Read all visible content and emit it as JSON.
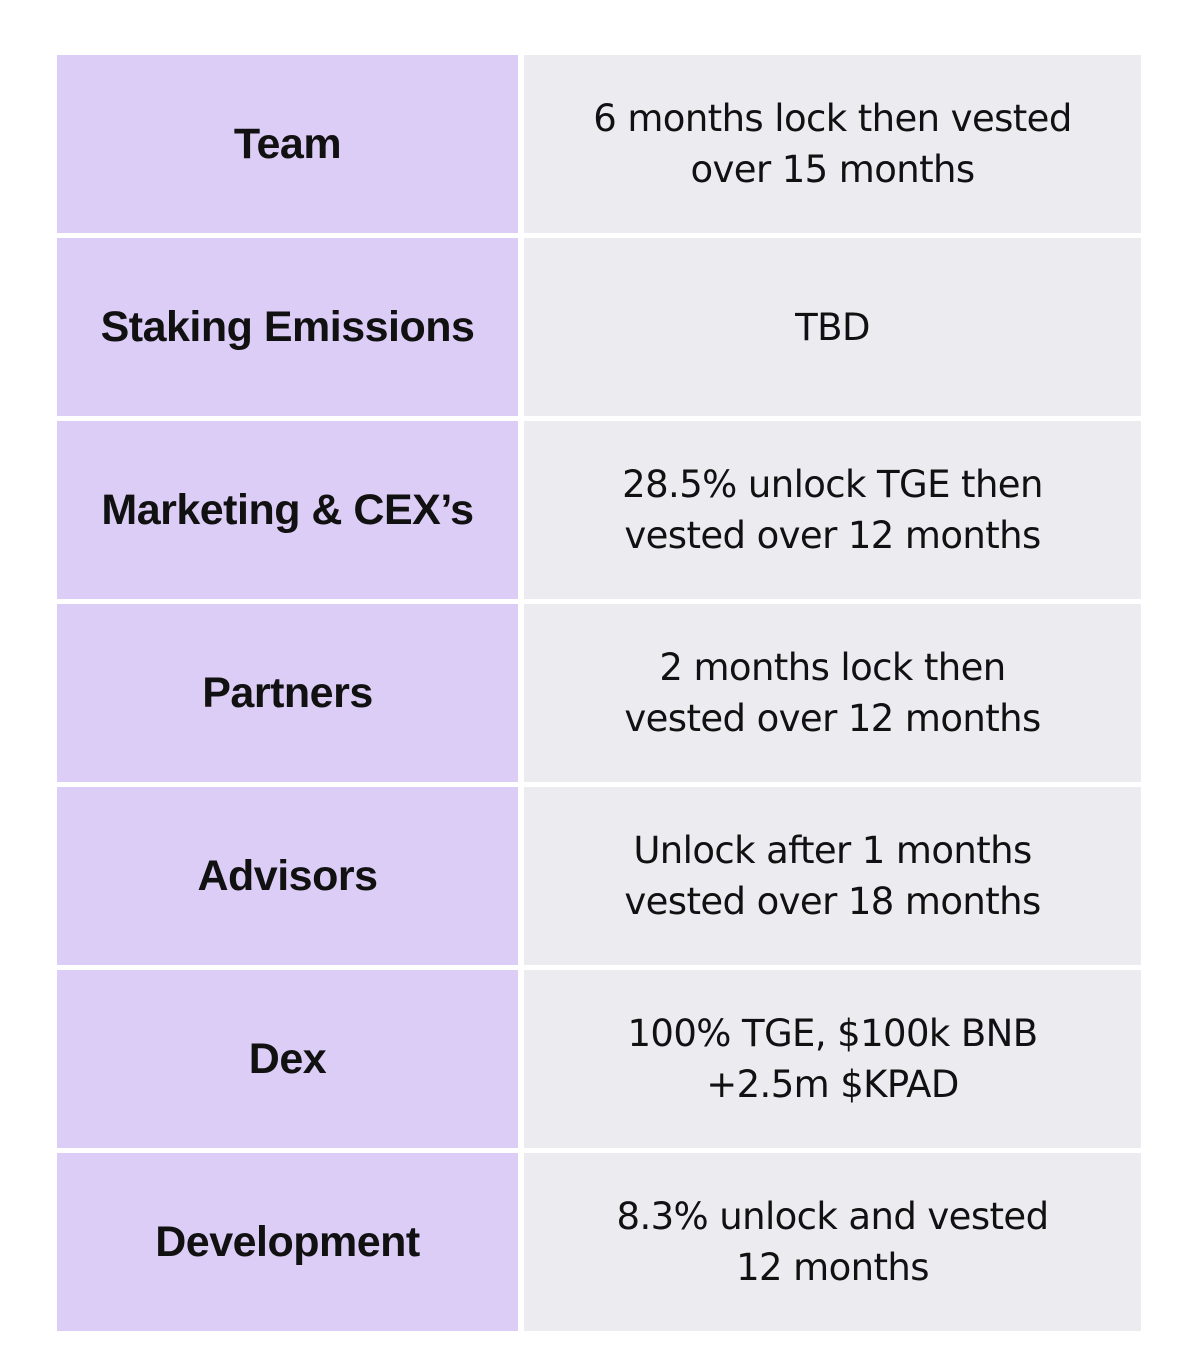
{
  "table": {
    "rows": [
      {
        "label": "Team",
        "value": "6 months lock then vested\nover 15 months"
      },
      {
        "label": "Staking Emissions",
        "value": "TBD"
      },
      {
        "label": "Marketing & CEX’s",
        "value": "28.5% unlock TGE then\nvested over 12 months"
      },
      {
        "label": "Partners",
        "value": "2 months lock then\nvested over 12 months"
      },
      {
        "label": "Advisors",
        "value": "Unlock after 1 months\nvested over 18 months"
      },
      {
        "label": "Dex",
        "value": "100% TGE, $100k BNB\n+2.5m $KPAD"
      },
      {
        "label": "Development",
        "value": "8.3% unlock and vested\n12 months"
      }
    ]
  },
  "colors": {
    "label_background": "#dccdf7",
    "value_background": "#ebebf0",
    "text": "#111111"
  }
}
